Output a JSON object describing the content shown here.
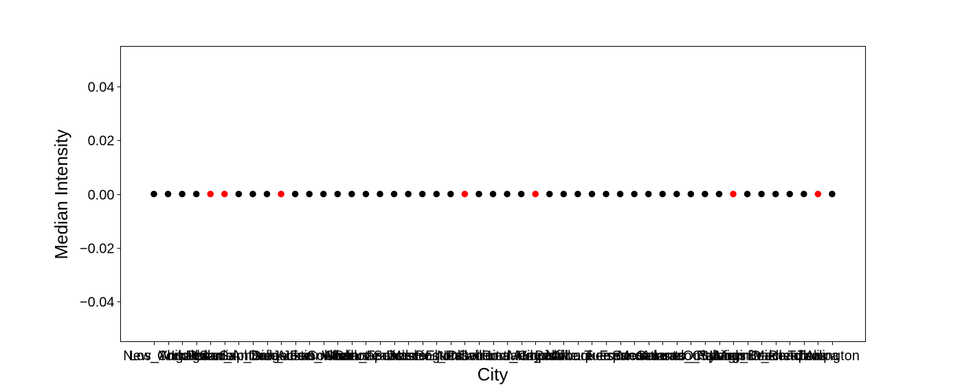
{
  "chart_data": {
    "type": "scatter",
    "title": "",
    "xlabel": "City",
    "ylabel": "Median Intensity",
    "ylim": [
      -0.055,
      0.055
    ],
    "yticks": [
      -0.04,
      -0.02,
      0.0,
      0.02,
      0.04
    ],
    "ytick_labels": [
      "−0.04",
      "−0.02",
      "0.00",
      "0.02",
      "0.04"
    ],
    "grid": false,
    "legend": "none",
    "colors": {
      "default": "#000000",
      "highlight": "#ff0000"
    },
    "categories": [
      "New_York",
      "Los_Angeles",
      "Chicago",
      "Houston",
      "Phoenix",
      "Philadelphia",
      "San_Antonio",
      "San_Diego",
      "Dallas",
      "San_Jose",
      "Austin",
      "Jacksonville",
      "Fort_Worth",
      "Columbus",
      "Charlotte",
      "Indianapolis",
      "San_Francisco",
      "Seattle",
      "Denver",
      "Washington",
      "Boston",
      "El_Paso",
      "Nashville",
      "Detroit",
      "Oklahoma_City",
      "Portland",
      "Las_Vegas",
      "Memphis",
      "Louisville",
      "Baltimore",
      "Milwaukee",
      "Albuquerque",
      "Tucson",
      "Fresno",
      "Mesa",
      "Sacramento",
      "Atlanta",
      "Kansas_City",
      "Colorado_Springs",
      "Omaha",
      "Raleigh",
      "Miami",
      "Long_Beach",
      "Virginia_Beach",
      "Oakland",
      "Minneapolis",
      "Tulsa",
      "Tampa",
      "Arlington"
    ],
    "values": [
      0,
      0,
      0,
      0,
      0,
      0,
      0,
      0,
      0,
      0,
      0,
      0,
      0,
      0,
      0,
      0,
      0,
      0,
      0,
      0,
      0,
      0,
      0,
      0,
      0,
      0,
      0,
      0,
      0,
      0,
      0,
      0,
      0,
      0,
      0,
      0,
      0,
      0,
      0,
      0,
      0,
      0,
      0,
      0,
      0,
      0,
      0,
      0,
      0
    ],
    "highlighted": [
      false,
      false,
      false,
      false,
      true,
      true,
      false,
      false,
      false,
      true,
      false,
      false,
      false,
      false,
      false,
      false,
      false,
      false,
      false,
      false,
      false,
      false,
      true,
      false,
      false,
      false,
      false,
      true,
      false,
      false,
      false,
      false,
      false,
      false,
      false,
      false,
      false,
      false,
      false,
      false,
      false,
      true,
      false,
      false,
      false,
      false,
      false,
      true,
      false
    ]
  }
}
